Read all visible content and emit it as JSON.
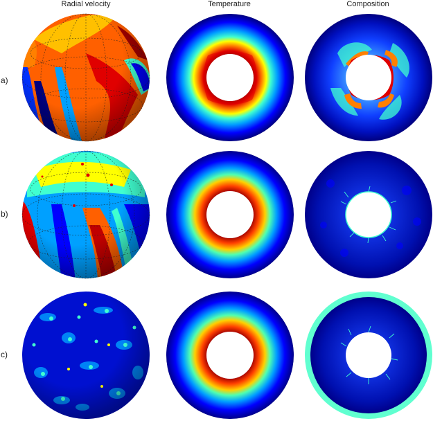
{
  "columns": [
    "Radial velocity",
    "Temperature",
    "Composition"
  ],
  "rows": [
    {
      "label": "a)"
    },
    {
      "label": "b)"
    },
    {
      "label": "c)"
    }
  ],
  "colormap": [
    "#00007f",
    "#0000ff",
    "#00a0ff",
    "#40ffd0",
    "#ffff00",
    "#ff8000",
    "#e00000",
    "#7f0000"
  ]
}
